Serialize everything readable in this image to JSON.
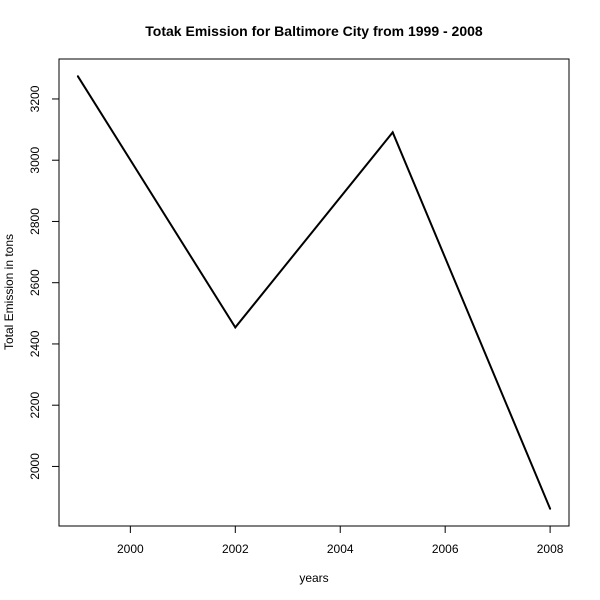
{
  "chart_data": {
    "type": "line",
    "title": "Totak Emission for Baltimore City from 1999 - 2008",
    "xlabel": "years",
    "ylabel": "Total Emission in tons",
    "x": [
      1999,
      2002,
      2005,
      2008
    ],
    "series": [
      {
        "values": [
          3274,
          2454,
          3091,
          1862
        ]
      }
    ],
    "xlim": [
      1998.64,
      2008.36
    ],
    "ylim": [
      1805.5,
      3330.5
    ],
    "xticks": [
      2000,
      2002,
      2004,
      2006,
      2008
    ],
    "xtick_labels": [
      "2000",
      "2002",
      "2004",
      "2006",
      "2008"
    ],
    "yticks": [
      2000,
      2200,
      2400,
      2600,
      2800,
      3000,
      3200
    ],
    "ytick_labels": [
      "2000",
      "2200",
      "2400",
      "2600",
      "2800",
      "3000",
      "3200"
    ],
    "grid": false,
    "line_color": "#000000"
  }
}
